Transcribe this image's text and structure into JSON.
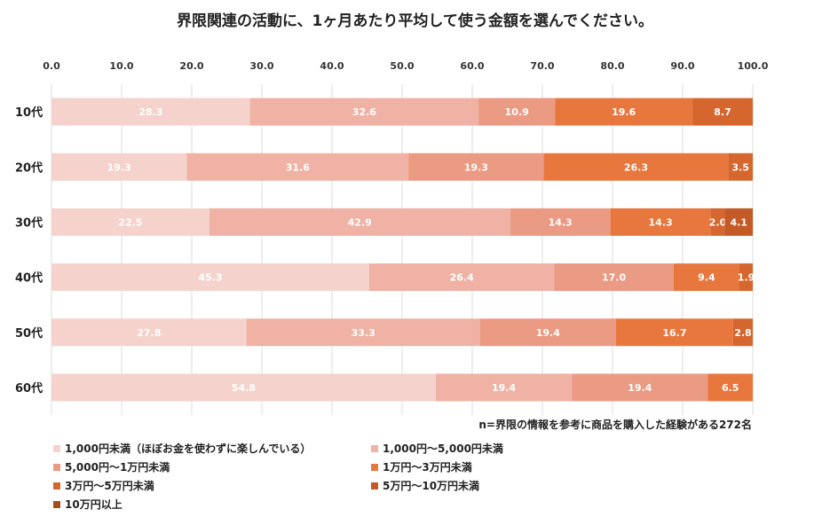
{
  "chart_data": {
    "type": "bar",
    "orientation": "horizontal",
    "stacked": true,
    "title": "界限関連の活動に、1ヶ月あたり平均して使う金額を選んでください。",
    "note": "n=界限の情報を参考に商品を購入した経験がある272名",
    "xlim": [
      0,
      100
    ],
    "xticks": [
      "0.0",
      "10.0",
      "20.0",
      "30.0",
      "40.0",
      "50.0",
      "60.0",
      "70.0",
      "80.0",
      "90.0",
      "100.0"
    ],
    "grid": true,
    "legend_position": "bottom",
    "categories": [
      "10代",
      "20代",
      "30代",
      "40代",
      "50代",
      "60代"
    ],
    "series": [
      {
        "name": "1,000円未満（ほぼお金を使わずに楽しんでいる）",
        "color": "#f5d3cc",
        "values": [
          28.3,
          19.3,
          22.5,
          45.3,
          27.8,
          54.8
        ]
      },
      {
        "name": "1,000円〜5,000円未満",
        "color": "#efb2a4",
        "values": [
          32.6,
          31.6,
          42.9,
          26.4,
          33.3,
          19.4
        ]
      },
      {
        "name": "5,000円〜1万円未満",
        "color": "#eb9a83",
        "values": [
          10.9,
          19.3,
          14.3,
          17.0,
          19.4,
          19.4
        ]
      },
      {
        "name": "1万円〜3万円未満",
        "color": "#e8773e",
        "values": [
          19.6,
          26.3,
          14.3,
          9.4,
          16.7,
          6.5
        ]
      },
      {
        "name": "3万円〜5万円未満",
        "color": "#d4662e",
        "values": [
          8.7,
          3.5,
          2.0,
          1.9,
          2.8,
          null
        ]
      },
      {
        "name": "5万円〜10万円未満",
        "color": "#c45a25",
        "values": [
          null,
          null,
          4.1,
          null,
          null,
          null
        ]
      },
      {
        "name": "10万円以上",
        "color": "#a4501e",
        "values": [
          null,
          null,
          null,
          null,
          null,
          null
        ]
      }
    ]
  }
}
